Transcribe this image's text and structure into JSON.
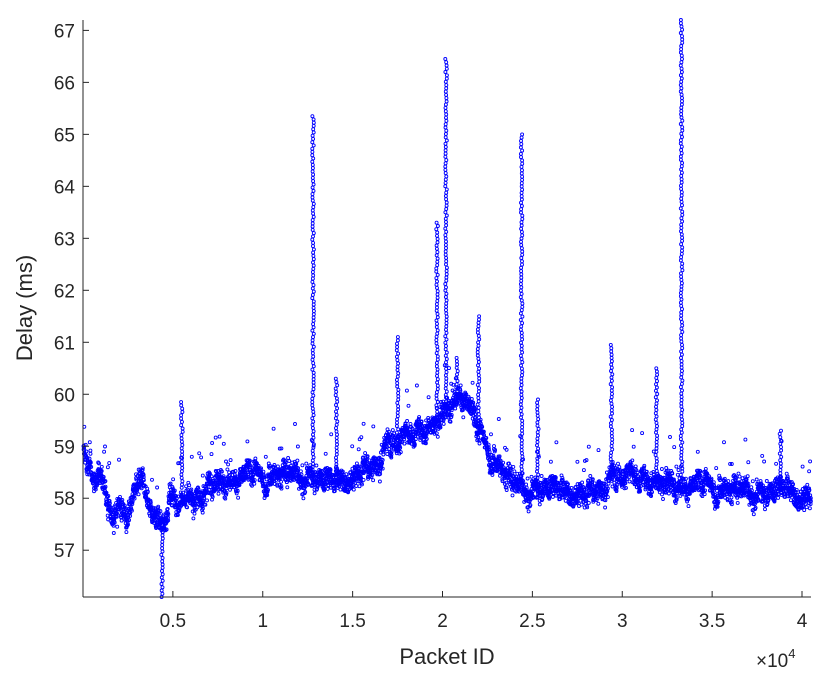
{
  "chart_data": {
    "type": "scatter",
    "title": "",
    "xlabel": "Packet ID",
    "ylabel": "Delay (ms)",
    "x_exponent_label": "×10^4",
    "x_exponent_base": "×10",
    "x_exponent_power": "4",
    "xlim": [
      0,
      40500
    ],
    "ylim": [
      56.1,
      67.2
    ],
    "x_ticks": [
      5000,
      10000,
      15000,
      20000,
      25000,
      30000,
      35000,
      40000
    ],
    "x_tick_labels": [
      "0.5",
      "1",
      "1.5",
      "2",
      "2.5",
      "3",
      "3.5",
      "4"
    ],
    "y_ticks": [
      57,
      58,
      59,
      60,
      61,
      62,
      63,
      64,
      65,
      66,
      67
    ],
    "y_tick_labels": [
      "57",
      "58",
      "59",
      "60",
      "61",
      "62",
      "63",
      "64",
      "65",
      "66",
      "67"
    ],
    "grid": false,
    "legend": "none",
    "marker": "circle-open",
    "color": "#0000ff",
    "series": [
      {
        "baseline_points": [
          [
            0,
            58.9
          ],
          [
            300,
            58.6
          ],
          [
            700,
            58.3
          ],
          [
            1000,
            58.5
          ],
          [
            1300,
            58.0
          ],
          [
            1700,
            57.6
          ],
          [
            2000,
            57.9
          ],
          [
            2400,
            57.5
          ],
          [
            2800,
            58.0
          ],
          [
            3200,
            58.2
          ],
          [
            3600,
            57.9
          ],
          [
            4000,
            57.6
          ],
          [
            4400,
            57.4
          ],
          [
            4800,
            57.9
          ],
          [
            5200,
            58.0
          ],
          [
            5600,
            57.9
          ],
          [
            6000,
            58.0
          ],
          [
            7000,
            58.2
          ],
          [
            8000,
            58.3
          ],
          [
            9000,
            58.4
          ],
          [
            10000,
            58.4
          ],
          [
            11000,
            58.5
          ],
          [
            12000,
            58.5
          ],
          [
            13000,
            58.4
          ],
          [
            14000,
            58.3
          ],
          [
            15000,
            58.4
          ],
          [
            16000,
            58.7
          ],
          [
            17000,
            59.1
          ],
          [
            18000,
            59.2
          ],
          [
            19000,
            59.4
          ],
          [
            20000,
            59.6
          ],
          [
            20500,
            59.8
          ],
          [
            21000,
            60.0
          ],
          [
            21500,
            59.7
          ],
          [
            22000,
            59.2
          ],
          [
            23000,
            58.7
          ],
          [
            24000,
            58.3
          ],
          [
            25000,
            58.2
          ],
          [
            26000,
            58.2
          ],
          [
            27000,
            58.1
          ],
          [
            28000,
            58.1
          ],
          [
            29000,
            58.4
          ],
          [
            30000,
            58.5
          ],
          [
            31000,
            58.4
          ],
          [
            32000,
            58.4
          ],
          [
            33000,
            58.2
          ],
          [
            34000,
            58.2
          ],
          [
            35000,
            58.2
          ],
          [
            36000,
            58.2
          ],
          [
            37000,
            58.2
          ],
          [
            38000,
            58.1
          ],
          [
            39000,
            58.2
          ],
          [
            40000,
            58.0
          ],
          [
            40500,
            58.1
          ]
        ],
        "spikes": [
          {
            "x": 4400,
            "peak": 56.1,
            "base": 57.6
          },
          {
            "x": 5500,
            "peak": 59.85,
            "base": 58.2
          },
          {
            "x": 12800,
            "peak": 65.35,
            "base": 58.6
          },
          {
            "x": 14100,
            "peak": 60.3,
            "base": 58.4
          },
          {
            "x": 17500,
            "peak": 61.1,
            "base": 59.2
          },
          {
            "x": 19700,
            "peak": 63.3,
            "base": 59.6
          },
          {
            "x": 20200,
            "peak": 66.45,
            "base": 59.8
          },
          {
            "x": 20800,
            "peak": 60.7,
            "base": 60.0
          },
          {
            "x": 22000,
            "peak": 61.5,
            "base": 59.3
          },
          {
            "x": 24400,
            "peak": 65.0,
            "base": 58.3
          },
          {
            "x": 25300,
            "peak": 59.9,
            "base": 58.2
          },
          {
            "x": 29400,
            "peak": 60.95,
            "base": 58.5
          },
          {
            "x": 31900,
            "peak": 60.5,
            "base": 58.4
          },
          {
            "x": 33300,
            "peak": 67.2,
            "base": 58.2
          },
          {
            "x": 38800,
            "peak": 59.3,
            "base": 58.1
          }
        ]
      }
    ]
  }
}
